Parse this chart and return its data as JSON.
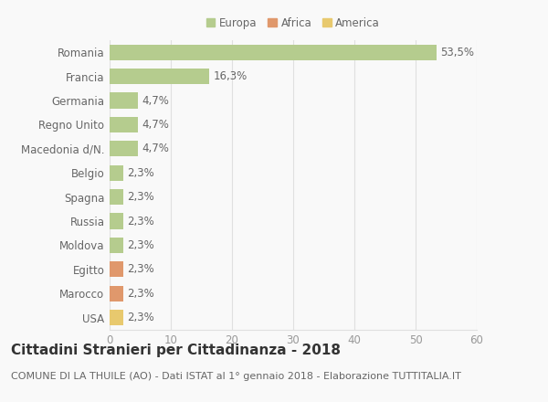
{
  "categories": [
    "Romania",
    "Francia",
    "Germania",
    "Regno Unito",
    "Macedonia d/N.",
    "Belgio",
    "Spagna",
    "Russia",
    "Moldova",
    "Egitto",
    "Marocco",
    "USA"
  ],
  "values": [
    53.5,
    16.3,
    4.7,
    4.7,
    4.7,
    2.3,
    2.3,
    2.3,
    2.3,
    2.3,
    2.3,
    2.3
  ],
  "labels": [
    "53,5%",
    "16,3%",
    "4,7%",
    "4,7%",
    "4,7%",
    "2,3%",
    "2,3%",
    "2,3%",
    "2,3%",
    "2,3%",
    "2,3%",
    "2,3%"
  ],
  "colors": [
    "#b5cc8e",
    "#b5cc8e",
    "#b5cc8e",
    "#b5cc8e",
    "#b5cc8e",
    "#b5cc8e",
    "#b5cc8e",
    "#b5cc8e",
    "#b5cc8e",
    "#e0986c",
    "#e0986c",
    "#e8c96e"
  ],
  "legend_labels": [
    "Europa",
    "Africa",
    "America"
  ],
  "legend_colors": [
    "#b5cc8e",
    "#e0986c",
    "#e8c96e"
  ],
  "xlim": [
    0,
    60
  ],
  "xticks": [
    0,
    10,
    20,
    30,
    40,
    50,
    60
  ],
  "title": "Cittadini Stranieri per Cittadinanza - 2018",
  "subtitle": "COMUNE DI LA THUILE (AO) - Dati ISTAT al 1° gennaio 2018 - Elaborazione TUTTITALIA.IT",
  "background_color": "#f9f9f9",
  "grid_color": "#e0e0e0",
  "bar_height": 0.65,
  "title_fontsize": 11,
  "subtitle_fontsize": 8,
  "label_fontsize": 8.5,
  "tick_fontsize": 8.5
}
